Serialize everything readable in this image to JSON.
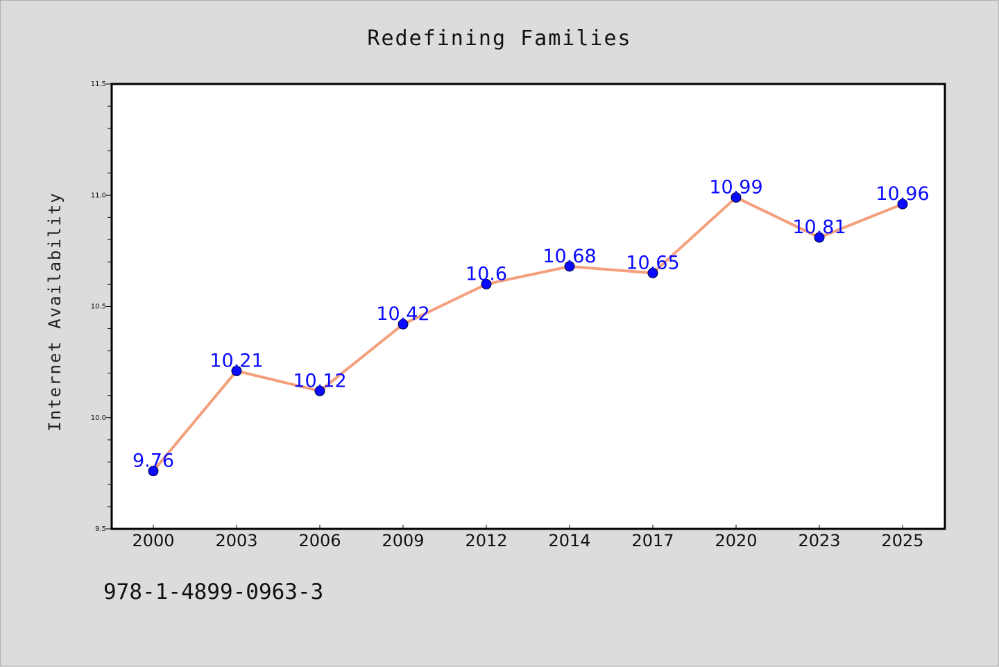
{
  "chart_data": {
    "type": "line",
    "title": "Redefining Families",
    "xlabel": "",
    "ylabel": "Internet Availability",
    "categories": [
      "2000",
      "2003",
      "2006",
      "2009",
      "2012",
      "2014",
      "2017",
      "2020",
      "2023",
      "2025"
    ],
    "series": [
      {
        "values": [
          9.76,
          10.21,
          10.12,
          10.42,
          10.6,
          10.68,
          10.65,
          10.99,
          10.81,
          10.96
        ],
        "data_labels": [
          "9.76",
          "10.21",
          "10.12",
          "10.42",
          "10.6",
          "10.68",
          "10.65",
          "10.99",
          "10.81",
          "10.96"
        ]
      }
    ],
    "ylim": [
      9.5,
      11.5
    ],
    "y_ticks": [
      "9.5",
      "10.0",
      "10.5",
      "11.0",
      "11.5"
    ],
    "grid": false,
    "colors": {
      "line": "#f4a07c",
      "marker": "#0a0aff",
      "data_label": "#0a0aff",
      "plot_background": "#ffffff",
      "figure_background": "#dcdcdc"
    }
  },
  "footer": {
    "isbn": "978-1-4899-0963-3"
  }
}
